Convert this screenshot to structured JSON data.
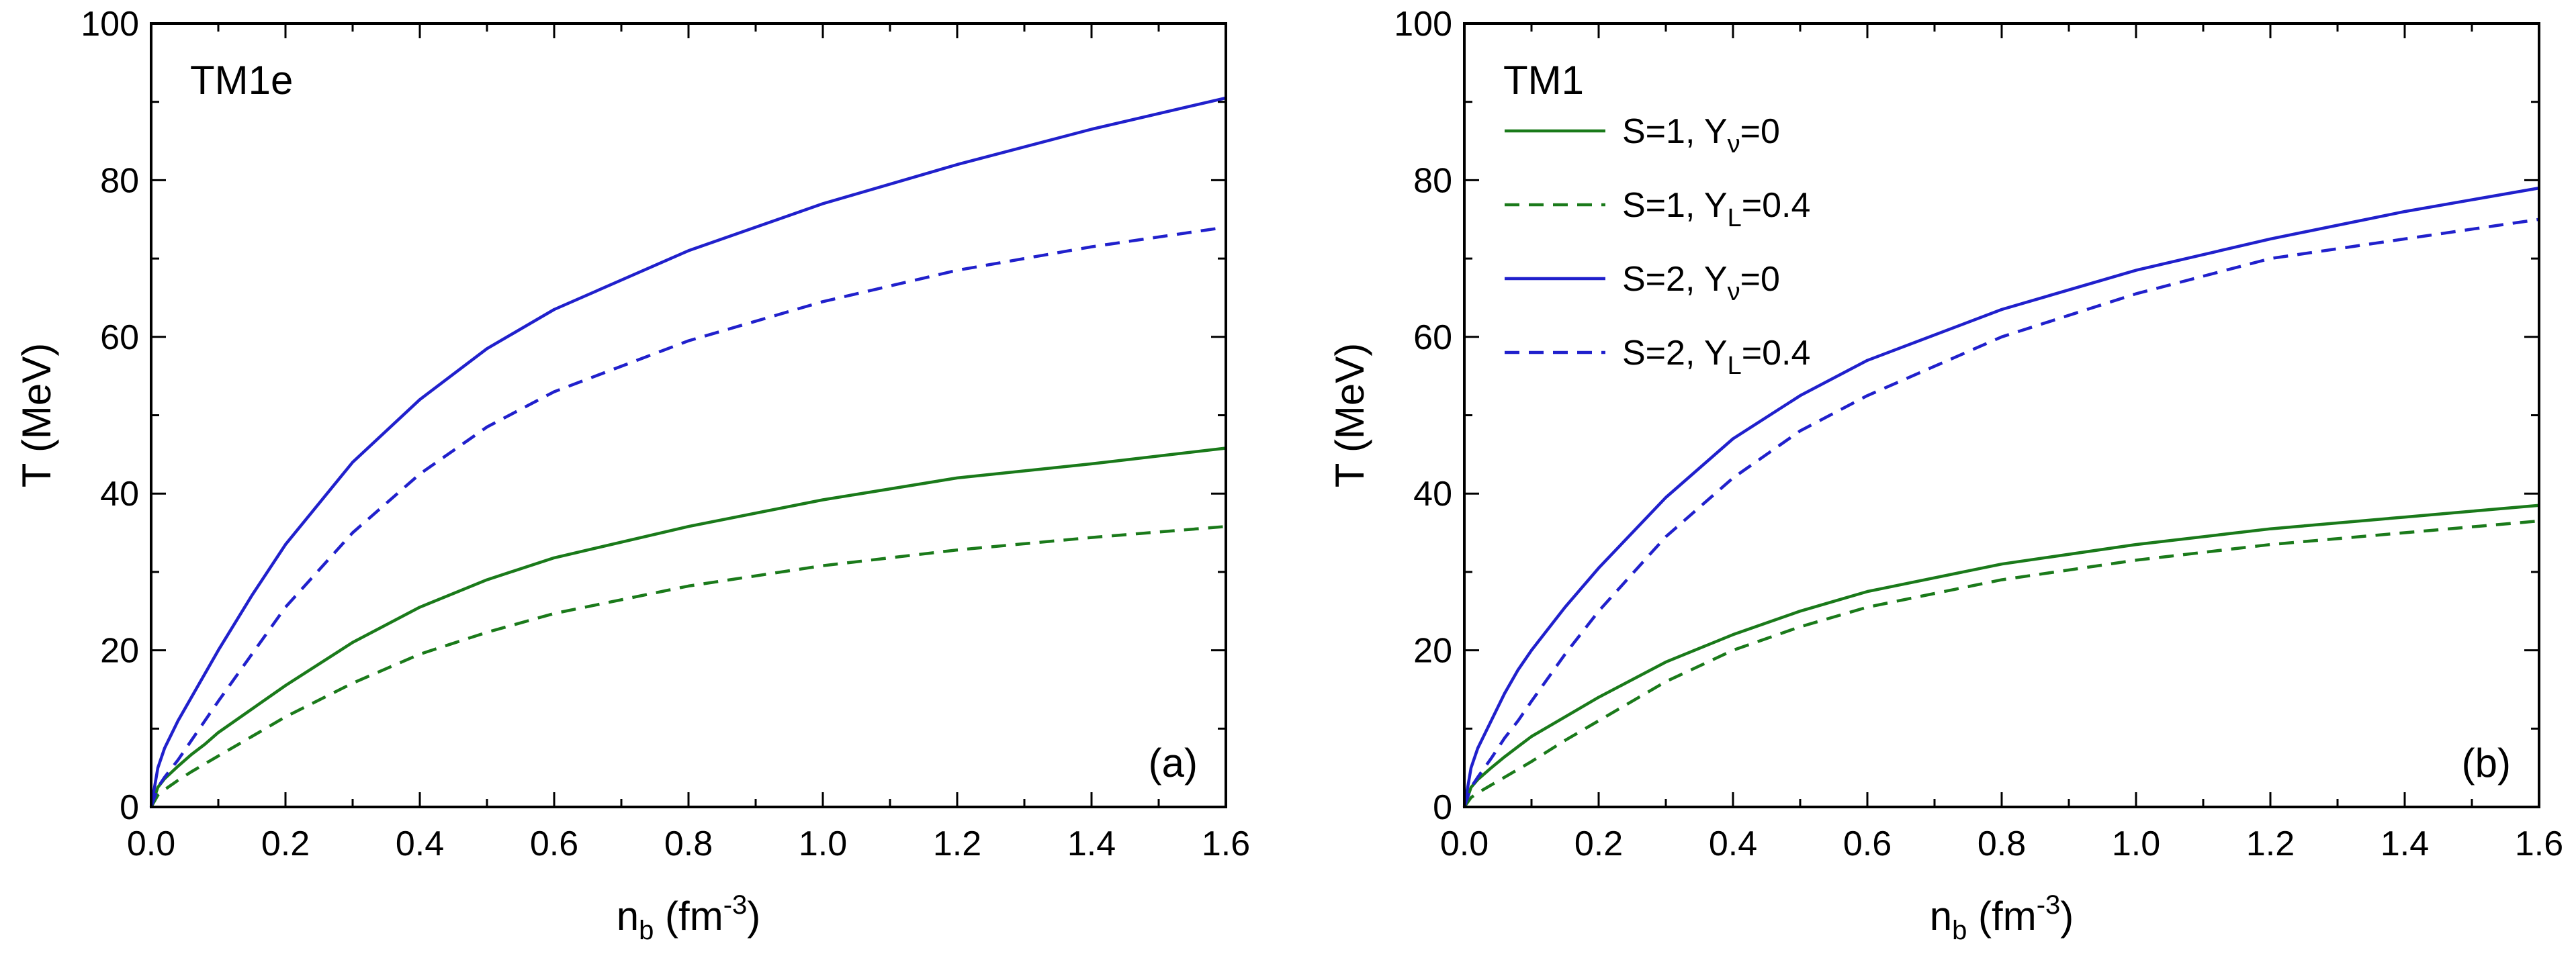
{
  "chart_data": [
    {
      "type": "line",
      "model_label": "TM1e",
      "panel_label": "(a)",
      "xlabel": "n",
      "xlabel_sub": "b",
      "xlabel_unit_open": " (fm",
      "xlabel_unit_sup": "-3",
      "xlabel_unit_close": ")",
      "ylabel": "T (MeV)",
      "xlim": [
        0.0,
        1.6
      ],
      "ylim": [
        0,
        100
      ],
      "x_ticks": [
        "0.0",
        "0.2",
        "0.4",
        "0.6",
        "0.8",
        "1.0",
        "1.2",
        "1.4",
        "1.6"
      ],
      "y_ticks": [
        "0",
        "20",
        "40",
        "60",
        "80",
        "100"
      ],
      "grid": false,
      "legend": null,
      "series": [
        {
          "color": "#1a7a1a",
          "dashed": false,
          "x": [
            0.0,
            0.01,
            0.02,
            0.04,
            0.06,
            0.08,
            0.1,
            0.15,
            0.2,
            0.3,
            0.4,
            0.5,
            0.6,
            0.8,
            1.0,
            1.2,
            1.4,
            1.6
          ],
          "y": [
            0,
            2.5,
            3.6,
            5.2,
            6.7,
            8.0,
            9.5,
            12.5,
            15.5,
            21,
            25.5,
            29,
            31.8,
            35.8,
            39.2,
            42,
            43.8,
            45.8
          ]
        },
        {
          "color": "#1a7a1a",
          "dashed": true,
          "x": [
            0.0,
            0.01,
            0.02,
            0.04,
            0.06,
            0.08,
            0.1,
            0.15,
            0.2,
            0.3,
            0.4,
            0.5,
            0.6,
            0.8,
            1.0,
            1.2,
            1.4,
            1.6
          ],
          "y": [
            0,
            1.5,
            2.2,
            3.4,
            4.5,
            5.5,
            6.5,
            9.0,
            11.5,
            15.8,
            19.5,
            22.3,
            24.7,
            28.2,
            30.8,
            32.8,
            34.4,
            35.8
          ]
        },
        {
          "color": "#2020cc",
          "dashed": false,
          "x": [
            0.0,
            0.01,
            0.02,
            0.04,
            0.06,
            0.08,
            0.1,
            0.15,
            0.2,
            0.3,
            0.4,
            0.5,
            0.6,
            0.8,
            1.0,
            1.2,
            1.4,
            1.6
          ],
          "y": [
            0,
            5.0,
            7.5,
            11.0,
            14.0,
            17.0,
            20.0,
            27.0,
            33.5,
            44.0,
            52.0,
            58.5,
            63.5,
            71.0,
            77.0,
            82.0,
            86.5,
            90.5
          ]
        },
        {
          "color": "#2020cc",
          "dashed": true,
          "x": [
            0.0,
            0.01,
            0.02,
            0.04,
            0.06,
            0.08,
            0.1,
            0.15,
            0.2,
            0.3,
            0.4,
            0.5,
            0.6,
            0.8,
            1.0,
            1.2,
            1.4,
            1.6
          ],
          "y": [
            0,
            2.5,
            3.8,
            6.0,
            8.5,
            11.0,
            13.5,
            19.5,
            25.5,
            35.0,
            42.5,
            48.5,
            53.0,
            59.5,
            64.5,
            68.5,
            71.5,
            74.0
          ]
        }
      ]
    },
    {
      "type": "line",
      "model_label": "TM1",
      "panel_label": "(b)",
      "xlabel": "n",
      "xlabel_sub": "b",
      "xlabel_unit_open": " (fm",
      "xlabel_unit_sup": "-3",
      "xlabel_unit_close": ")",
      "ylabel": "T (MeV)",
      "xlim": [
        0.0,
        1.6
      ],
      "ylim": [
        0,
        100
      ],
      "x_ticks": [
        "0.0",
        "0.2",
        "0.4",
        "0.6",
        "0.8",
        "1.0",
        "1.2",
        "1.4",
        "1.6"
      ],
      "y_ticks": [
        "0",
        "20",
        "40",
        "60",
        "80",
        "100"
      ],
      "grid": false,
      "legend": "top-left",
      "series": [
        {
          "legend_main": "S=1, Y",
          "legend_sub": "ν",
          "legend_tail": "=0",
          "color": "#1a7a1a",
          "dashed": false,
          "x": [
            0.0,
            0.01,
            0.02,
            0.04,
            0.06,
            0.08,
            0.1,
            0.15,
            0.2,
            0.3,
            0.4,
            0.5,
            0.6,
            0.8,
            1.0,
            1.2,
            1.4,
            1.6
          ],
          "y": [
            0,
            2.5,
            3.5,
            5.0,
            6.4,
            7.7,
            9.0,
            11.5,
            14.0,
            18.5,
            22.0,
            25.0,
            27.5,
            31.0,
            33.5,
            35.5,
            37.0,
            38.5
          ]
        },
        {
          "legend_main": "S=1, Y",
          "legend_sub": "L",
          "legend_tail": "=0.4",
          "color": "#1a7a1a",
          "dashed": true,
          "x": [
            0.0,
            0.01,
            0.02,
            0.04,
            0.06,
            0.08,
            0.1,
            0.15,
            0.2,
            0.3,
            0.4,
            0.5,
            0.6,
            0.8,
            1.0,
            1.2,
            1.4,
            1.6
          ],
          "y": [
            0,
            1.2,
            1.8,
            2.8,
            3.8,
            4.8,
            5.8,
            8.5,
            11.0,
            16.0,
            20.0,
            23.0,
            25.5,
            29.0,
            31.5,
            33.5,
            35.0,
            36.5
          ]
        },
        {
          "legend_main": "S=2, Y",
          "legend_sub": "ν",
          "legend_tail": "=0",
          "color": "#2020cc",
          "dashed": false,
          "x": [
            0.0,
            0.01,
            0.02,
            0.04,
            0.06,
            0.08,
            0.1,
            0.15,
            0.2,
            0.3,
            0.4,
            0.5,
            0.6,
            0.8,
            1.0,
            1.2,
            1.4,
            1.6
          ],
          "y": [
            0,
            5.0,
            7.5,
            11.0,
            14.5,
            17.5,
            20.0,
            25.5,
            30.5,
            39.5,
            47.0,
            52.5,
            57.0,
            63.5,
            68.5,
            72.5,
            76.0,
            79.0
          ]
        },
        {
          "legend_main": "S=2, Y",
          "legend_sub": "L",
          "legend_tail": "=0.4",
          "color": "#2020cc",
          "dashed": true,
          "x": [
            0.0,
            0.01,
            0.02,
            0.04,
            0.06,
            0.08,
            0.1,
            0.15,
            0.2,
            0.3,
            0.4,
            0.5,
            0.6,
            0.8,
            1.0,
            1.2,
            1.4,
            1.6
          ],
          "y": [
            0,
            2.5,
            3.8,
            6.2,
            8.8,
            11.0,
            13.5,
            19.5,
            25.0,
            34.5,
            42.0,
            48.0,
            52.5,
            60.0,
            65.5,
            70.0,
            72.5,
            75.0
          ]
        }
      ]
    }
  ]
}
